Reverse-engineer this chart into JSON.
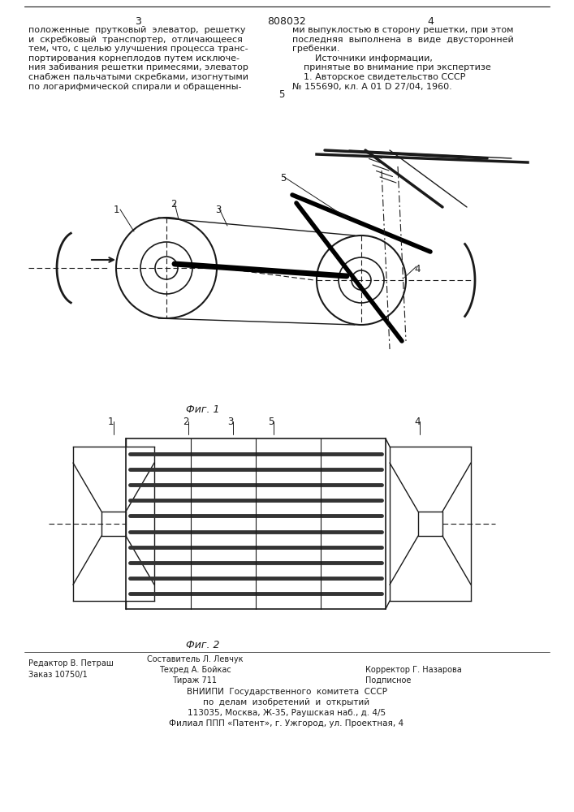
{
  "title": "808032",
  "page_left": "3",
  "page_right": "4",
  "background": "#ffffff",
  "text_color": "#1a1a1a",
  "line_color": "#1a1a1a",
  "text_top_left": "положенные  прутковый  элеватор,  решетку\nи  скребковый  транспортер,  отличающееся\nтем, что, с целью улучшения процесса транс-\nпортирования корнеплодов путем исключе-\nния забивания решетки примесями, элеватор\nснабжен пальчатыми скребками, изогнутыми\nпо логарифмической спирали и обращенны-",
  "text_top_right": "ми выпуклостью в сторону решетки, при этом\nпоследняя  выполнена  в  виде  двусторонней\nгребенки.\n        Источники информации,\n    принятые во внимание при экспертизе\n    1. Авторское свидетельство СССР\n№ 155690, кл. А 01 D 27/04, 1960.",
  "line_number_5": "5",
  "fig1_label": "Фиг. 1",
  "fig2_label": "Фиг. 2",
  "footer_left1": "Редактор В. Петраш",
  "footer_left2": "Заказ 10750/1",
  "footer_center1": "Составитель Л. Левчук",
  "footer_center2": "Техред А. Бойкас",
  "footer_center3": "Тираж 711",
  "footer_right1": "Корректор Г. Назарова",
  "footer_right2": "Подписное",
  "footer_vnipi1": "ВНИИПИ  Государственного  комитета  СССР",
  "footer_vnipi2": "по  делам  изобретений  и  открытий",
  "footer_vnipi3": "113035, Москва, Ж-35, Раушская наб., д. 4/5",
  "footer_vnipi4": "Филиал ППП «Патент», г. Ужгород, ул. Проектная, 4"
}
